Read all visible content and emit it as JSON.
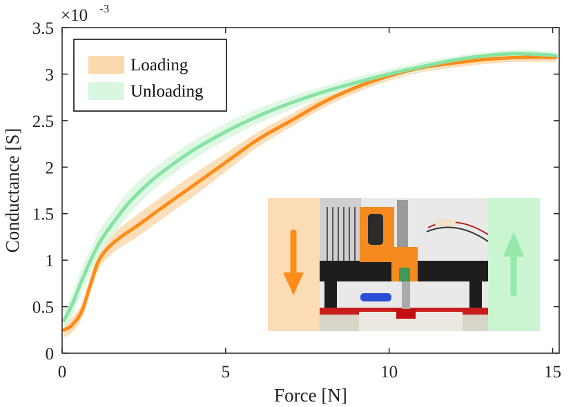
{
  "chart_data": {
    "type": "line",
    "xlabel": "Force [N]",
    "ylabel": "Conductance [S]",
    "y_exponent_base": "×10",
    "y_exponent_power": "-3",
    "xlim": [
      0,
      15.2
    ],
    "ylim": [
      0,
      3.5
    ],
    "xticks": [
      0,
      5,
      10,
      15
    ],
    "xtick_labels": [
      "0",
      "5",
      "10",
      "15"
    ],
    "yticks": [
      0,
      0.5,
      1,
      1.5,
      2,
      2.5,
      3,
      3.5
    ],
    "ytick_labels": [
      "0",
      "0.5",
      "1",
      "1.5",
      "2",
      "2.5",
      "3",
      "3.5"
    ],
    "grid": false,
    "legend_position": "top-left",
    "series": [
      {
        "name": "Loading",
        "color": "#ff8c1a",
        "band_color": "#fbd9ae",
        "x": [
          0.05,
          0.3,
          0.6,
          0.85,
          1.1,
          1.4,
          1.8,
          2.3,
          3,
          4,
          5,
          6,
          7,
          8,
          9,
          10,
          11,
          12,
          13,
          14,
          15.1
        ],
        "y": [
          0.25,
          0.3,
          0.45,
          0.72,
          0.98,
          1.13,
          1.25,
          1.37,
          1.55,
          1.8,
          2.05,
          2.3,
          2.5,
          2.7,
          2.86,
          2.98,
          3.07,
          3.12,
          3.16,
          3.18,
          3.18
        ],
        "band_width": [
          0.08,
          0.08,
          0.08,
          0.08,
          0.09,
          0.1,
          0.11,
          0.12,
          0.12,
          0.12,
          0.1,
          0.08,
          0.07,
          0.06,
          0.06,
          0.05,
          0.05,
          0.05,
          0.05,
          0.05,
          0.05
        ]
      },
      {
        "name": "Unloading",
        "color": "#86e3a2",
        "band_color": "#d8f7df",
        "x": [
          0.05,
          0.3,
          0.6,
          0.9,
          1.2,
          1.6,
          2,
          2.5,
          3,
          4,
          5,
          6,
          7,
          8,
          9,
          10,
          11,
          12,
          13,
          14,
          15.1
        ],
        "y": [
          0.35,
          0.52,
          0.78,
          1.02,
          1.22,
          1.42,
          1.6,
          1.78,
          1.93,
          2.18,
          2.38,
          2.55,
          2.69,
          2.81,
          2.91,
          3,
          3.08,
          3.15,
          3.2,
          3.22,
          3.2
        ],
        "band_width": [
          0.1,
          0.12,
          0.13,
          0.13,
          0.13,
          0.13,
          0.13,
          0.12,
          0.11,
          0.1,
          0.09,
          0.08,
          0.07,
          0.06,
          0.06,
          0.05,
          0.05,
          0.04,
          0.04,
          0.04,
          0.04
        ]
      }
    ],
    "inset": {
      "left_panel_color": "#fbdcb5",
      "left_arrow": "down",
      "left_arrow_color": "#ff8c1a",
      "right_panel_color": "#c9f6d1",
      "right_arrow": "up",
      "right_arrow_color": "#97e8ac"
    }
  }
}
